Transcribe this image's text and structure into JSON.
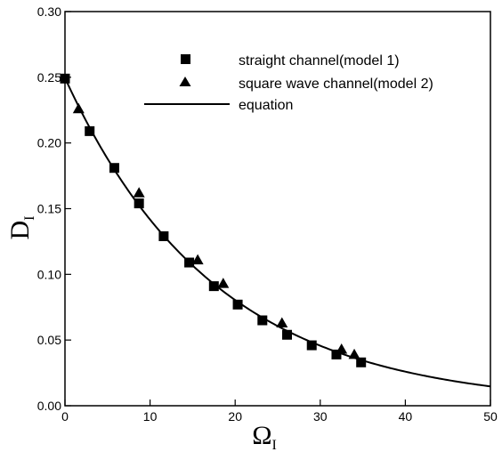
{
  "chart_data": {
    "type": "scatter",
    "xlabel": {
      "main": "Ω",
      "sub": "I"
    },
    "ylabel": {
      "main": "D",
      "sub": "I"
    },
    "xlim": [
      0,
      50
    ],
    "ylim": [
      0,
      0.3
    ],
    "x_ticks": [
      "0",
      "10",
      "20",
      "30",
      "40",
      "50"
    ],
    "y_ticks": [
      "0.00",
      "0.05",
      "0.10",
      "0.15",
      "0.20",
      "0.25",
      "0.30"
    ],
    "grid": false,
    "legend_position": "top-right",
    "series": [
      {
        "name": "straight channel(model 1)",
        "marker": "square",
        "points": [
          [
            0.0,
            0.249
          ],
          [
            2.9,
            0.209
          ],
          [
            5.8,
            0.181
          ],
          [
            8.7,
            0.154
          ],
          [
            11.6,
            0.129
          ],
          [
            14.6,
            0.109
          ],
          [
            17.5,
            0.091
          ],
          [
            20.3,
            0.077
          ],
          [
            23.2,
            0.065
          ],
          [
            26.1,
            0.054
          ],
          [
            29.0,
            0.046
          ],
          [
            31.9,
            0.039
          ],
          [
            34.8,
            0.033
          ]
        ]
      },
      {
        "name": "square wave channel(model 2)",
        "marker": "triangle",
        "points": [
          [
            1.6,
            0.226
          ],
          [
            8.7,
            0.162
          ],
          [
            15.6,
            0.111
          ],
          [
            18.6,
            0.093
          ],
          [
            25.5,
            0.063
          ],
          [
            32.5,
            0.043
          ],
          [
            34.0,
            0.039
          ]
        ]
      },
      {
        "name": "equation",
        "marker": "line",
        "curve": {
          "form": "exponential",
          "a": 0.2495,
          "b": 0.0566,
          "x_range": [
            0,
            50
          ]
        }
      }
    ]
  }
}
